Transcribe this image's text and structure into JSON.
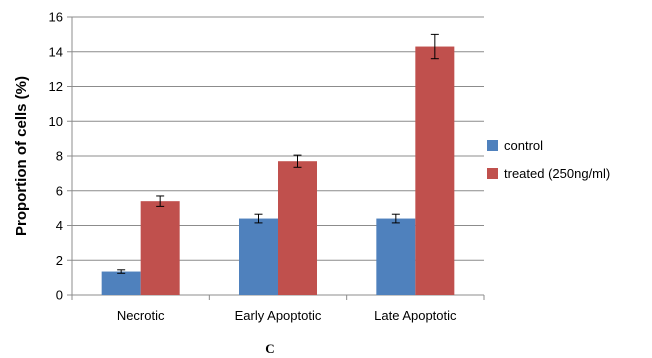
{
  "chart_data": {
    "type": "bar",
    "title": "",
    "ylabel": "Proportion of cells (%)",
    "xlabel": "",
    "categories": [
      "Necrotic",
      "Early Apoptotic",
      "Late Apoptotic"
    ],
    "ylim": [
      0,
      16
    ],
    "yticks": [
      0,
      2,
      4,
      6,
      8,
      10,
      12,
      14,
      16
    ],
    "grid": true,
    "legend_position": "right",
    "series": [
      {
        "name": "control",
        "color": "#4f81bd",
        "values": [
          1.35,
          4.4,
          4.4
        ],
        "errors": [
          0.1,
          0.25,
          0.25
        ]
      },
      {
        "name": "treated (250ng/ml)",
        "color": "#c0504d",
        "values": [
          5.4,
          7.7,
          14.3
        ],
        "errors": [
          0.3,
          0.35,
          0.7
        ]
      }
    ],
    "panel_label": "C"
  }
}
